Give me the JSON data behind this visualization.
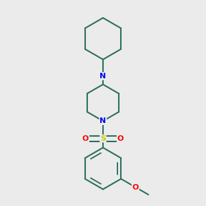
{
  "background_color": "#ebebeb",
  "bond_color": "#2d6e5e",
  "bond_width": 1.5,
  "atom_colors": {
    "N": "#0000ee",
    "O": "#ff0000",
    "S": "#cccc00"
  },
  "figsize": [
    3.0,
    3.0
  ],
  "dpi": 100,
  "xlim": [
    0.15,
    0.85
  ],
  "ylim": [
    0.05,
    0.97
  ]
}
